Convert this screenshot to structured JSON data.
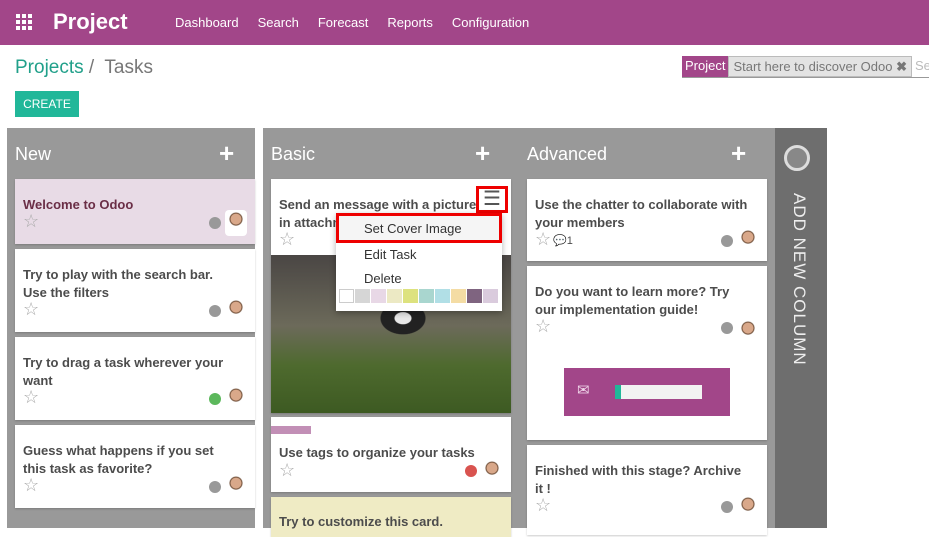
{
  "app": {
    "title": "Project",
    "menu": [
      "Dashboard",
      "Search",
      "Forecast",
      "Reports",
      "Configuration"
    ]
  },
  "breadcrumb": {
    "parent": "Projects",
    "sep": "/",
    "current": "Tasks"
  },
  "create_label": "CREATE",
  "search": {
    "facet_label": "Project",
    "facet_value": "Start here to discover Odoo",
    "placeholder": "Search..."
  },
  "columns": [
    {
      "title": "New",
      "cards": [
        {
          "title": "Welcome to Odoo",
          "status": "grey"
        },
        {
          "title": "Try to play with the search bar. Use the filters",
          "status": "grey"
        },
        {
          "title": "Try to drag a task wherever your want",
          "status": "green"
        },
        {
          "title": "Guess what happens if you set this task as favorite?",
          "status": "grey"
        }
      ]
    },
    {
      "title": "Basic",
      "cards": [
        {
          "title": "Send an message with a picture in attachment",
          "status": ""
        },
        {
          "title": "Use tags to organize your tasks",
          "status": "red"
        },
        {
          "title": "Try to customize this card.",
          "status": ""
        }
      ]
    },
    {
      "title": "Advanced",
      "cards": [
        {
          "title": "Use the chatter to collaborate with your members",
          "messages": "1",
          "status": "grey"
        },
        {
          "title": "Do you want to learn more? Try our implementation guide!",
          "status": "grey"
        },
        {
          "title": "Finished with this stage? Archive it !",
          "status": "grey"
        }
      ]
    }
  ],
  "add_column_label": "ADD NEW COLUMN",
  "dropdown": {
    "items": [
      "Set Cover Image",
      "Edit Task",
      "Delete"
    ],
    "colors": [
      "#ffffff",
      "#d6d6d6",
      "#e8d8e6",
      "#ece9c4",
      "#dde27e",
      "#a9d6cf",
      "#b1dfe6",
      "#f4dca4",
      "#7f6480",
      "#dacbdd"
    ]
  },
  "colors": {
    "brand": "#a24689",
    "accent": "#21b799"
  }
}
